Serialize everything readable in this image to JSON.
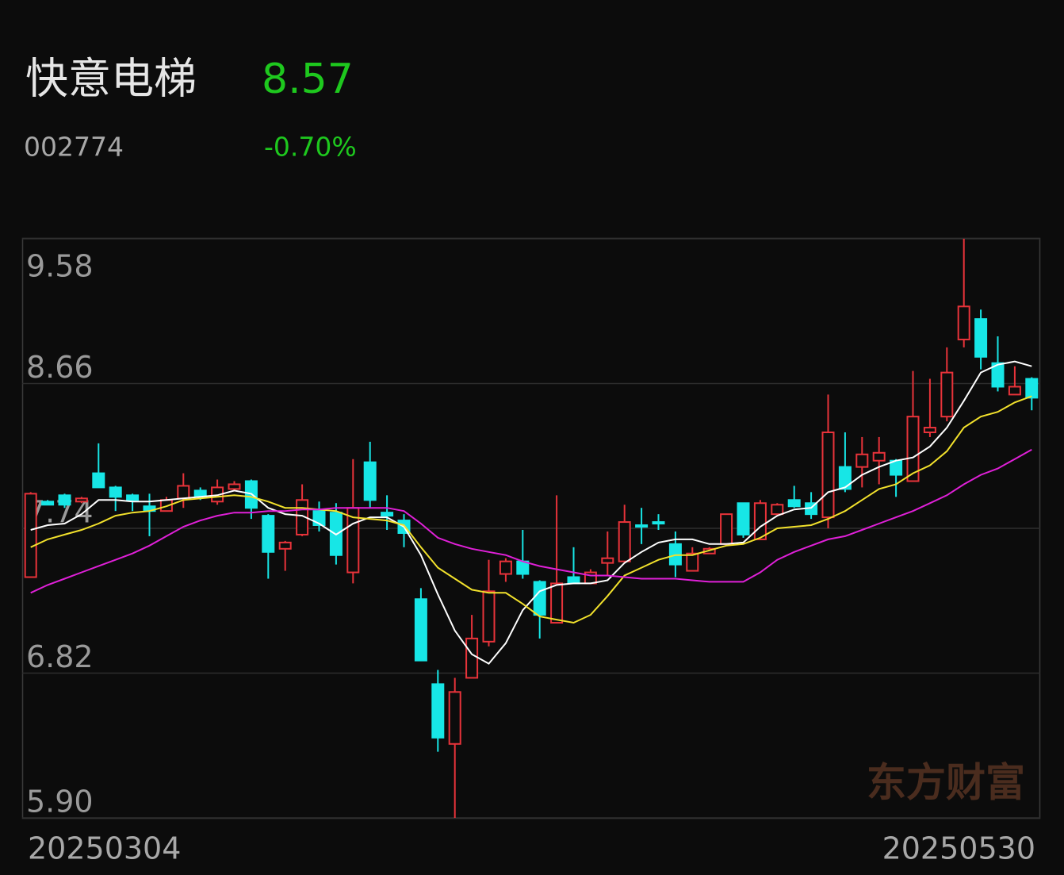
{
  "header": {
    "name": "快意电梯",
    "price": "8.57",
    "code": "002774",
    "change": "-0.70%"
  },
  "chart_data": {
    "type": "candlestick",
    "watermark": "东方财富",
    "categories": [
      "20250304",
      null,
      null,
      null,
      null,
      null,
      null,
      null,
      null,
      null,
      null,
      null,
      null,
      null,
      null,
      null,
      null,
      null,
      null,
      null,
      null,
      null,
      null,
      null,
      null,
      null,
      null,
      null,
      null,
      null,
      null,
      null,
      null,
      null,
      null,
      null,
      null,
      null,
      null,
      null,
      null,
      null,
      null,
      null,
      null,
      null,
      null,
      null,
      null,
      null,
      null,
      null,
      null,
      null,
      null,
      null,
      null,
      null,
      null,
      "20250530"
    ],
    "open": [
      7.43,
      7.91,
      7.95,
      7.91,
      8.09,
      8.0,
      7.95,
      7.88,
      7.85,
      7.93,
      7.98,
      7.91,
      7.99,
      8.04,
      7.82,
      7.61,
      7.7,
      7.85,
      7.84,
      7.46,
      8.16,
      7.84,
      7.79,
      7.29,
      6.75,
      6.37,
      6.79,
      7.02,
      7.45,
      7.53,
      7.4,
      7.14,
      7.43,
      7.39,
      7.52,
      7.53,
      7.76,
      7.78,
      7.64,
      7.47,
      7.58,
      7.64,
      7.9,
      7.67,
      7.83,
      7.92,
      7.9,
      7.81,
      8.13,
      8.13,
      8.17,
      8.17,
      8.04,
      8.35,
      8.45,
      8.94,
      9.07,
      8.79,
      8.59,
      8.69
    ],
    "high": [
      7.97,
      7.92,
      7.96,
      7.94,
      8.28,
      8.01,
      7.96,
      7.96,
      7.94,
      8.09,
      8.0,
      8.05,
      8.04,
      8.05,
      7.83,
      7.66,
      8.02,
      7.91,
      7.9,
      8.18,
      8.29,
      7.95,
      7.83,
      7.36,
      6.84,
      6.79,
      7.19,
      7.54,
      7.55,
      7.73,
      7.41,
      7.95,
      7.62,
      7.48,
      7.72,
      7.89,
      7.87,
      7.83,
      7.72,
      7.62,
      7.62,
      7.83,
      7.9,
      7.92,
      7.9,
      8.01,
      7.97,
      8.59,
      8.35,
      8.32,
      8.32,
      8.18,
      8.74,
      8.69,
      8.89,
      9.58,
      9.13,
      8.96,
      8.77,
      8.7
    ],
    "low": [
      7.43,
      7.89,
      7.87,
      7.9,
      8.0,
      7.85,
      7.85,
      7.69,
      7.85,
      7.87,
      7.92,
      7.89,
      7.98,
      7.8,
      7.42,
      7.47,
      7.69,
      7.72,
      7.51,
      7.39,
      7.87,
      7.73,
      7.62,
      6.9,
      6.32,
      5.9,
      6.79,
      6.99,
      7.4,
      7.42,
      7.04,
      7.14,
      7.39,
      7.39,
      7.44,
      7.53,
      7.64,
      7.73,
      7.43,
      7.47,
      7.58,
      7.64,
      7.68,
      7.67,
      7.83,
      7.87,
      7.8,
      7.74,
      7.97,
      8.0,
      8.02,
      7.94,
      8.04,
      8.32,
      8.42,
      8.89,
      8.75,
      8.61,
      8.59,
      8.49
    ],
    "close": [
      7.96,
      7.89,
      7.89,
      7.93,
      8.0,
      7.94,
      7.92,
      7.85,
      7.92,
      8.01,
      7.94,
      8.0,
      8.02,
      7.87,
      7.59,
      7.65,
      7.92,
      7.76,
      7.57,
      7.87,
      7.92,
      7.82,
      7.71,
      6.9,
      6.41,
      6.7,
      7.04,
      7.34,
      7.53,
      7.45,
      7.19,
      7.39,
      7.39,
      7.46,
      7.55,
      7.78,
      7.75,
      7.77,
      7.51,
      7.58,
      7.61,
      7.83,
      7.7,
      7.9,
      7.89,
      7.88,
      7.83,
      8.35,
      7.99,
      8.21,
      8.22,
      8.08,
      8.45,
      8.38,
      8.73,
      9.15,
      8.83,
      8.64,
      8.64,
      8.57
    ],
    "up_color": "#e8333a",
    "down_color": "#17e6e6",
    "lines": [
      {
        "color": "#ffffff",
        "values": [
          7.73,
          7.76,
          7.77,
          7.83,
          7.92,
          7.92,
          7.91,
          7.91,
          7.92,
          7.93,
          7.94,
          7.95,
          7.98,
          7.96,
          7.87,
          7.83,
          7.82,
          7.77,
          7.7,
          7.77,
          7.81,
          7.81,
          7.75,
          7.57,
          7.32,
          7.09,
          6.94,
          6.88,
          7.01,
          7.22,
          7.34,
          7.38,
          7.39,
          7.39,
          7.41,
          7.52,
          7.59,
          7.65,
          7.67,
          7.67,
          7.64,
          7.64,
          7.65,
          7.75,
          7.82,
          7.86,
          7.87,
          7.97,
          8.0,
          8.08,
          8.13,
          8.17,
          8.19,
          8.26,
          8.38,
          8.55,
          8.73,
          8.78,
          8.8,
          8.77
        ]
      },
      {
        "color": "#f2e12c",
        "values": [
          7.62,
          7.67,
          7.7,
          7.73,
          7.77,
          7.82,
          7.84,
          7.85,
          7.88,
          7.92,
          7.93,
          7.94,
          7.95,
          7.94,
          7.91,
          7.87,
          7.87,
          7.86,
          7.85,
          7.81,
          7.8,
          7.79,
          7.76,
          7.62,
          7.49,
          7.42,
          7.35,
          7.33,
          7.33,
          7.26,
          7.18,
          7.16,
          7.14,
          7.19,
          7.31,
          7.44,
          7.49,
          7.54,
          7.57,
          7.57,
          7.6,
          7.63,
          7.64,
          7.68,
          7.74,
          7.75,
          7.76,
          7.8,
          7.85,
          7.92,
          7.99,
          8.02,
          8.09,
          8.14,
          8.23,
          8.38,
          8.45,
          8.48,
          8.54,
          8.58
        ]
      },
      {
        "color": "#e020d8",
        "values": [
          7.33,
          7.38,
          7.42,
          7.46,
          7.5,
          7.54,
          7.58,
          7.63,
          7.69,
          7.75,
          7.79,
          7.82,
          7.84,
          7.84,
          7.85,
          7.85,
          7.86,
          7.86,
          7.87,
          7.87,
          7.87,
          7.87,
          7.85,
          7.77,
          7.68,
          7.64,
          7.61,
          7.59,
          7.57,
          7.53,
          7.5,
          7.48,
          7.46,
          7.44,
          7.44,
          7.43,
          7.42,
          7.42,
          7.42,
          7.41,
          7.4,
          7.4,
          7.4,
          7.46,
          7.54,
          7.59,
          7.63,
          7.67,
          7.69,
          7.73,
          7.77,
          7.81,
          7.85,
          7.9,
          7.95,
          8.02,
          8.08,
          8.12,
          8.18,
          8.24
        ]
      }
    ],
    "ylim": [
      5.9,
      9.58
    ],
    "yticks": [
      9.58,
      8.66,
      7.74,
      6.82,
      {
        "value": 5.9,
        "label": "5.90"
      }
    ],
    "grid": true
  }
}
